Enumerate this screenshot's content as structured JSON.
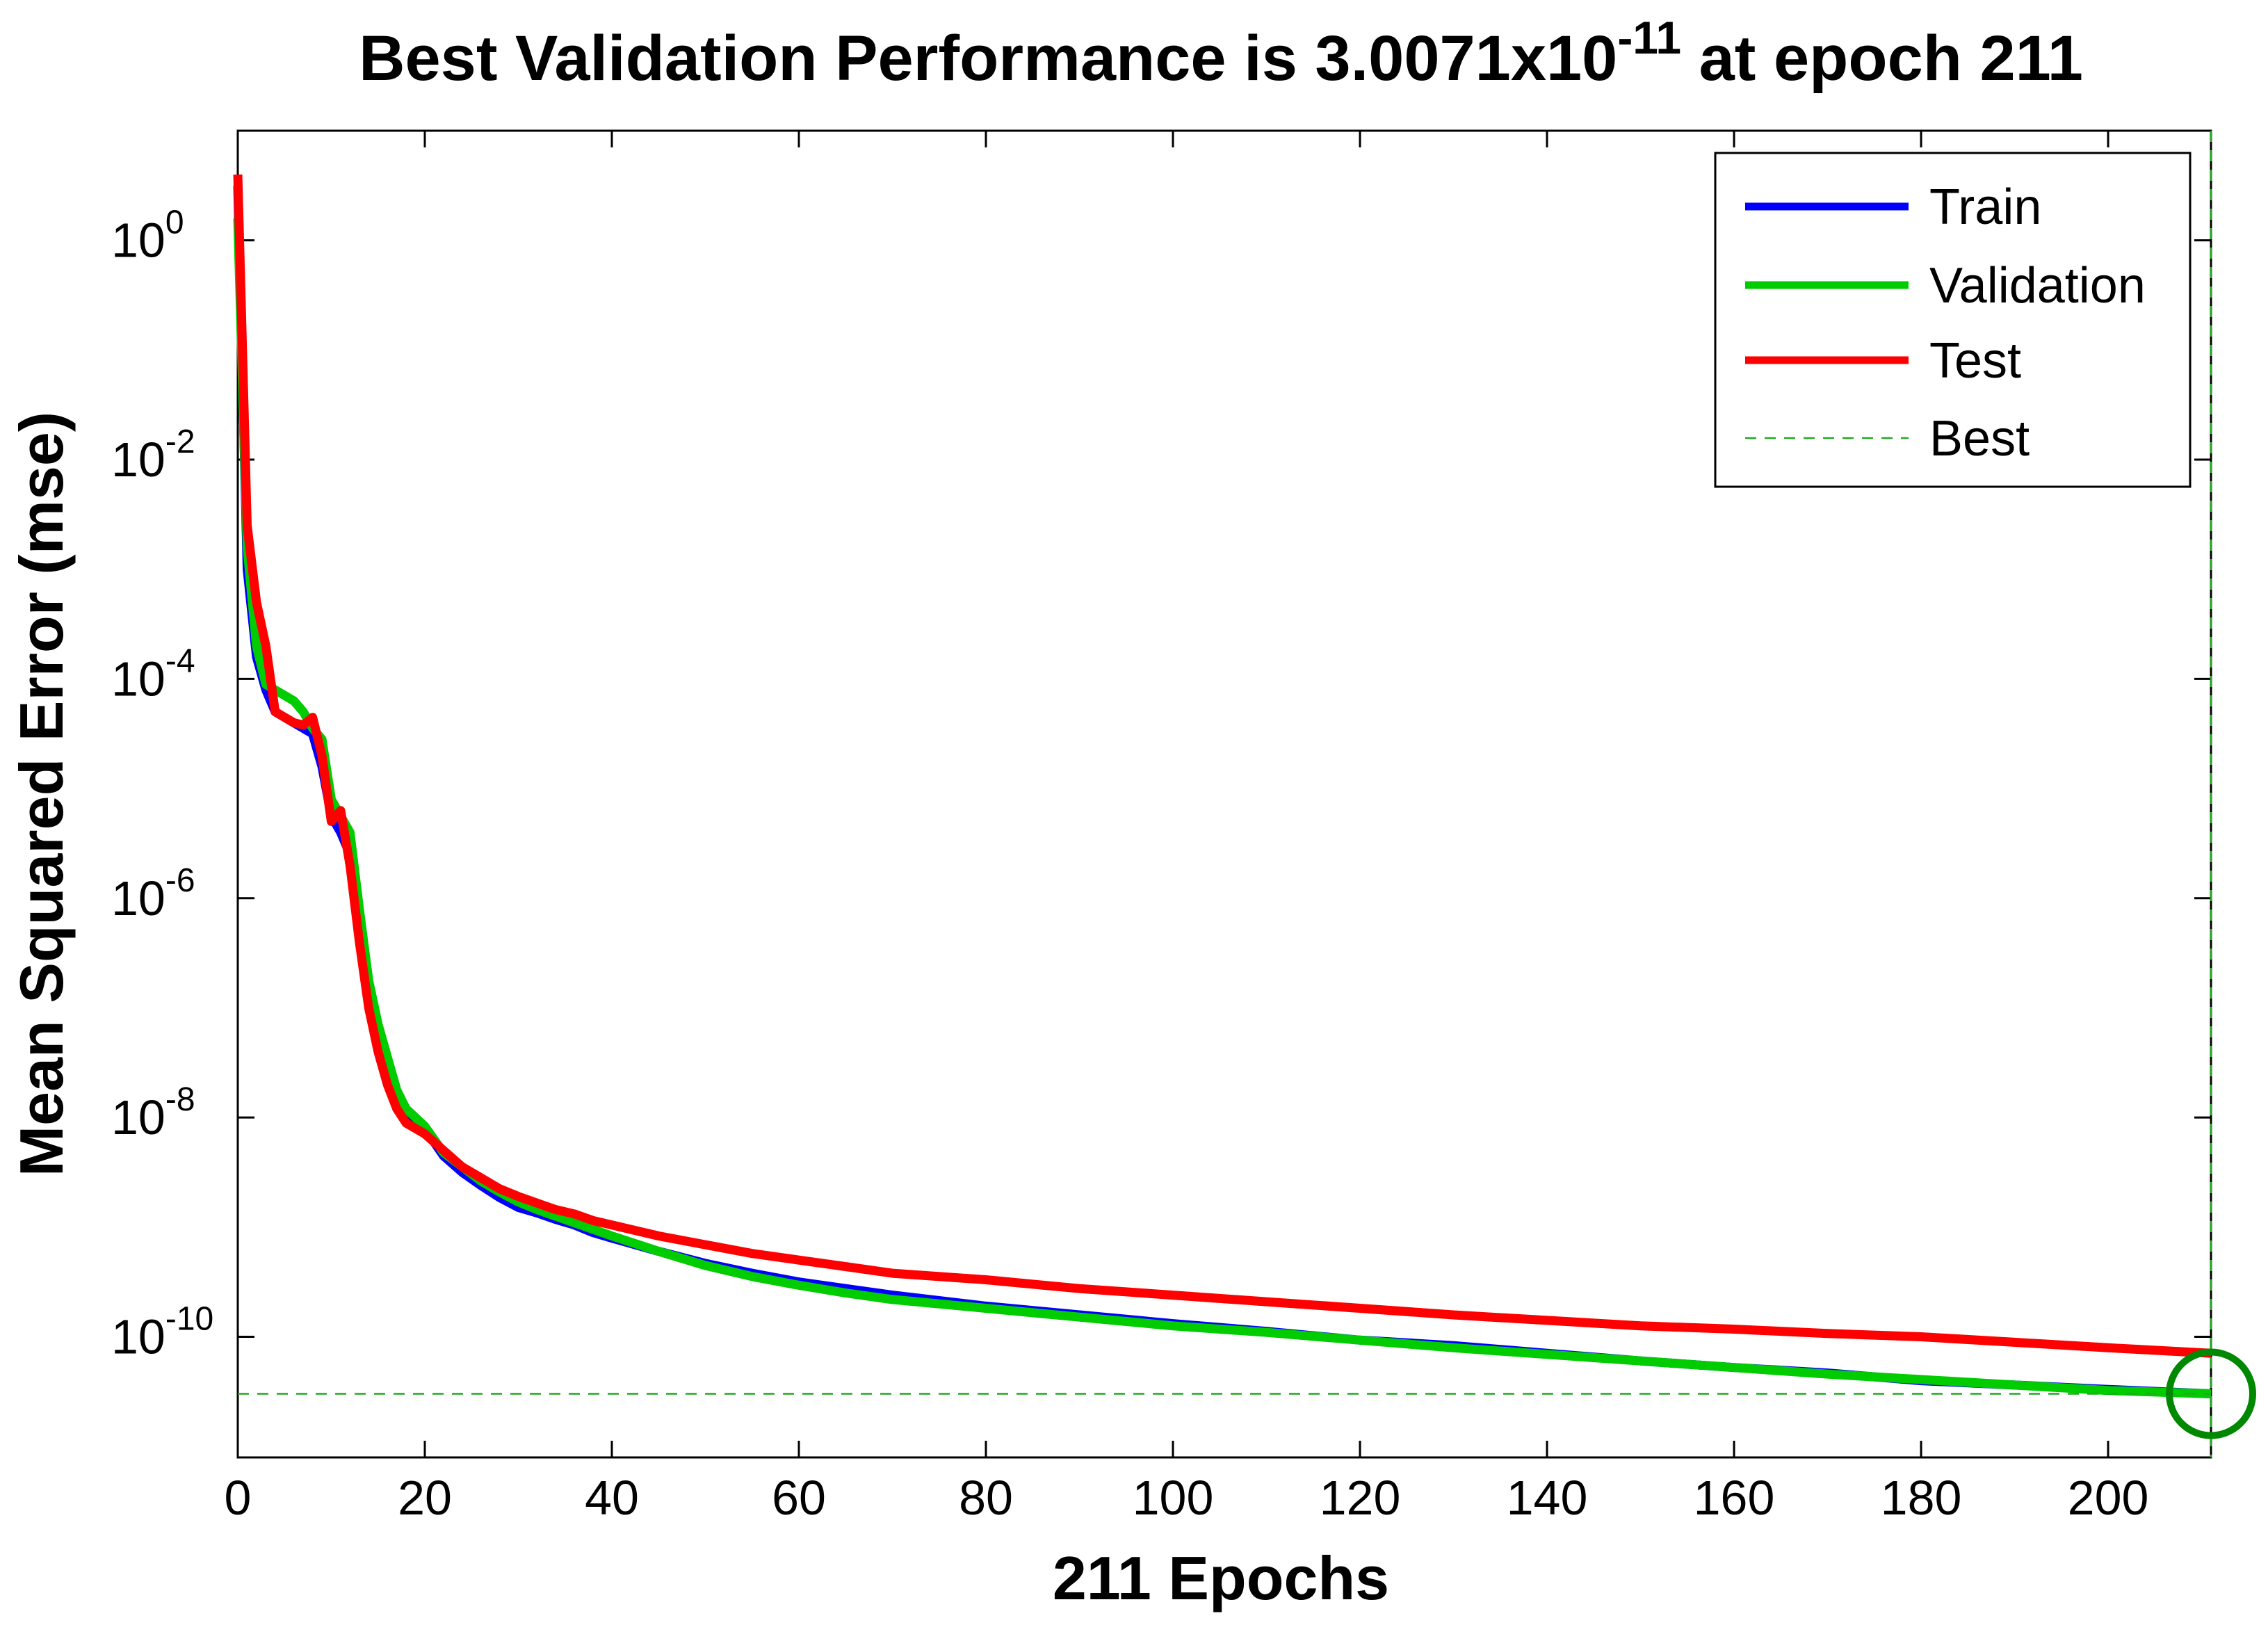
{
  "chart_data": {
    "type": "line",
    "title": {
      "prefix": "Best Validation Performance is 3.0071x10",
      "exponent": "-11",
      "suffix": " at epoch 211"
    },
    "xlabel": "211 Epochs",
    "ylabel": "Mean Squared Error  (mse)",
    "yscale": "log",
    "xlim": [
      0,
      211
    ],
    "ylim_log10": [
      -11.1,
      1.0
    ],
    "xticks": [
      0,
      20,
      40,
      60,
      80,
      100,
      120,
      140,
      160,
      180,
      200
    ],
    "yticks": [
      {
        "base": "10",
        "exp": "0",
        "log10": 0
      },
      {
        "base": "10",
        "exp": "-2",
        "log10": -2
      },
      {
        "base": "10",
        "exp": "-4",
        "log10": -4
      },
      {
        "base": "10",
        "exp": "-6",
        "log10": -6
      },
      {
        "base": "10",
        "exp": "-8",
        "log10": -8
      },
      {
        "base": "10",
        "exp": "-10",
        "log10": -10
      }
    ],
    "series": [
      {
        "name": "Train",
        "color": "#0000ff",
        "points": [
          [
            0,
            0.5
          ],
          [
            1,
            -3.0
          ],
          [
            2,
            -3.8
          ],
          [
            3,
            -4.1
          ],
          [
            4,
            -4.3
          ],
          [
            5,
            -4.35
          ],
          [
            6,
            -4.4
          ],
          [
            7,
            -4.45
          ],
          [
            8,
            -4.5
          ],
          [
            9,
            -4.8
          ],
          [
            10,
            -5.25
          ],
          [
            11,
            -5.4
          ],
          [
            12,
            -5.6
          ],
          [
            13,
            -6.3
          ],
          [
            14,
            -6.9
          ],
          [
            15,
            -7.3
          ],
          [
            16,
            -7.6
          ],
          [
            17,
            -7.85
          ],
          [
            18,
            -7.98
          ],
          [
            20,
            -8.1
          ],
          [
            22,
            -8.35
          ],
          [
            24,
            -8.5
          ],
          [
            26,
            -8.62
          ],
          [
            28,
            -8.73
          ],
          [
            30,
            -8.82
          ],
          [
            32,
            -8.87
          ],
          [
            34,
            -8.93
          ],
          [
            36,
            -8.98
          ],
          [
            38,
            -9.05
          ],
          [
            40,
            -9.1
          ],
          [
            45,
            -9.22
          ],
          [
            50,
            -9.33
          ],
          [
            55,
            -9.42
          ],
          [
            60,
            -9.5
          ],
          [
            65,
            -9.56
          ],
          [
            70,
            -9.62
          ],
          [
            80,
            -9.72
          ],
          [
            90,
            -9.8
          ],
          [
            100,
            -9.88
          ],
          [
            110,
            -9.95
          ],
          [
            120,
            -10.03
          ],
          [
            130,
            -10.08
          ],
          [
            140,
            -10.15
          ],
          [
            150,
            -10.22
          ],
          [
            160,
            -10.28
          ],
          [
            170,
            -10.33
          ],
          [
            180,
            -10.4
          ],
          [
            190,
            -10.44
          ],
          [
            200,
            -10.48
          ],
          [
            211,
            -10.52
          ]
        ]
      },
      {
        "name": "Validation",
        "color": "#00cc00",
        "points": [
          [
            0,
            0.2
          ],
          [
            1,
            -2.8
          ],
          [
            2,
            -3.7
          ],
          [
            3,
            -4.05
          ],
          [
            4,
            -4.1
          ],
          [
            5,
            -4.15
          ],
          [
            6,
            -4.2
          ],
          [
            7,
            -4.3
          ],
          [
            8,
            -4.45
          ],
          [
            9,
            -4.55
          ],
          [
            10,
            -5.1
          ],
          [
            11,
            -5.25
          ],
          [
            12,
            -5.4
          ],
          [
            13,
            -6.1
          ],
          [
            14,
            -6.75
          ],
          [
            15,
            -7.15
          ],
          [
            16,
            -7.45
          ],
          [
            17,
            -7.75
          ],
          [
            18,
            -7.92
          ],
          [
            20,
            -8.08
          ],
          [
            22,
            -8.32
          ],
          [
            24,
            -8.45
          ],
          [
            26,
            -8.58
          ],
          [
            28,
            -8.68
          ],
          [
            30,
            -8.77
          ],
          [
            32,
            -8.84
          ],
          [
            34,
            -8.9
          ],
          [
            36,
            -8.96
          ],
          [
            38,
            -9.02
          ],
          [
            40,
            -9.08
          ],
          [
            45,
            -9.22
          ],
          [
            50,
            -9.35
          ],
          [
            55,
            -9.45
          ],
          [
            60,
            -9.53
          ],
          [
            65,
            -9.6
          ],
          [
            70,
            -9.66
          ],
          [
            80,
            -9.74
          ],
          [
            90,
            -9.82
          ],
          [
            100,
            -9.9
          ],
          [
            110,
            -9.96
          ],
          [
            120,
            -10.03
          ],
          [
            130,
            -10.1
          ],
          [
            140,
            -10.16
          ],
          [
            150,
            -10.22
          ],
          [
            160,
            -10.28
          ],
          [
            170,
            -10.34
          ],
          [
            180,
            -10.39
          ],
          [
            190,
            -10.44
          ],
          [
            200,
            -10.49
          ],
          [
            211,
            -10.52
          ]
        ]
      },
      {
        "name": "Test",
        "color": "#ff0000",
        "points": [
          [
            0,
            0.6
          ],
          [
            1,
            -2.6
          ],
          [
            2,
            -3.3
          ],
          [
            3,
            -3.7
          ],
          [
            4,
            -4.3
          ],
          [
            5,
            -4.35
          ],
          [
            6,
            -4.4
          ],
          [
            7,
            -4.42
          ],
          [
            8,
            -4.35
          ],
          [
            9,
            -4.7
          ],
          [
            10,
            -5.3
          ],
          [
            11,
            -5.2
          ],
          [
            12,
            -5.7
          ],
          [
            13,
            -6.4
          ],
          [
            14,
            -7.0
          ],
          [
            15,
            -7.4
          ],
          [
            16,
            -7.7
          ],
          [
            17,
            -7.92
          ],
          [
            18,
            -8.05
          ],
          [
            20,
            -8.15
          ],
          [
            22,
            -8.3
          ],
          [
            24,
            -8.45
          ],
          [
            26,
            -8.55
          ],
          [
            28,
            -8.65
          ],
          [
            30,
            -8.72
          ],
          [
            32,
            -8.78
          ],
          [
            34,
            -8.84
          ],
          [
            36,
            -8.88
          ],
          [
            38,
            -8.94
          ],
          [
            40,
            -8.98
          ],
          [
            45,
            -9.08
          ],
          [
            50,
            -9.16
          ],
          [
            55,
            -9.24
          ],
          [
            60,
            -9.3
          ],
          [
            65,
            -9.36
          ],
          [
            70,
            -9.42
          ],
          [
            80,
            -9.48
          ],
          [
            90,
            -9.56
          ],
          [
            100,
            -9.62
          ],
          [
            110,
            -9.68
          ],
          [
            120,
            -9.74
          ],
          [
            130,
            -9.8
          ],
          [
            140,
            -9.85
          ],
          [
            150,
            -9.9
          ],
          [
            160,
            -9.93
          ],
          [
            170,
            -9.97
          ],
          [
            180,
            -10.0
          ],
          [
            190,
            -10.05
          ],
          [
            200,
            -10.1
          ],
          [
            211,
            -10.15
          ]
        ]
      }
    ],
    "best": {
      "epoch": 211,
      "value": "3.0071e-11",
      "log10": -10.52,
      "color": "#008800",
      "line_color": "#22aa22"
    },
    "legend": {
      "placement": "top-right",
      "entries": [
        {
          "label": "Train",
          "color": "#0000ff",
          "style": "solid"
        },
        {
          "label": "Validation",
          "color": "#00cc00",
          "style": "solid"
        },
        {
          "label": "Test",
          "color": "#ff0000",
          "style": "solid"
        },
        {
          "label": "Best",
          "color": "#22aa22",
          "style": "dashed"
        }
      ]
    }
  }
}
